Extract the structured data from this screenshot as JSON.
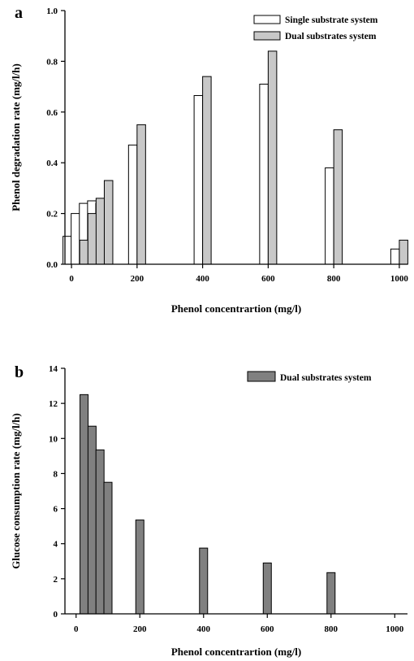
{
  "chart_data": [
    {
      "type": "bar",
      "panel_label": "a",
      "xlabel": "Phenol concentrartion (mg/l)",
      "ylabel": "Phenol degradation rate (mg/l/h)",
      "xlim": [
        -20,
        1025
      ],
      "ylim": [
        0,
        1.0
      ],
      "xticks": [
        0,
        200,
        400,
        600,
        800,
        1000
      ],
      "yticks": [
        0.0,
        0.2,
        0.4,
        0.6,
        0.8,
        1.0
      ],
      "ytick_labels": [
        "0.0",
        "0.2",
        "0.4",
        "0.6",
        "0.8",
        "1.0"
      ],
      "legend_position": "top-right",
      "grid": false,
      "series": [
        {
          "name": "Single substrate system",
          "color": "#ffffff",
          "x": [
            0,
            25,
            50,
            75,
            100,
            200,
            400,
            600,
            800,
            1000
          ],
          "values": [
            0.11,
            0.2,
            0.24,
            0.25,
            0.24,
            0.47,
            0.665,
            0.71,
            0.38,
            0.06
          ]
        },
        {
          "name": "Dual substrates system",
          "color": "#c8c8c8",
          "x": [
            0,
            25,
            50,
            75,
            100,
            200,
            400,
            600,
            800,
            1000
          ],
          "values": [
            null,
            0.095,
            0.2,
            0.26,
            0.33,
            0.55,
            0.74,
            0.84,
            0.53,
            0.095
          ]
        }
      ]
    },
    {
      "type": "bar",
      "panel_label": "b",
      "xlabel": "Phenol concentrartion (mg/l)",
      "ylabel": "Glucose consumption rate (mg/l/h)",
      "xlim": [
        -35,
        1040
      ],
      "ylim": [
        0,
        14
      ],
      "xticks": [
        0,
        200,
        400,
        600,
        800,
        1000
      ],
      "yticks": [
        0,
        2,
        4,
        6,
        8,
        10,
        12,
        14
      ],
      "ytick_labels": [
        "0",
        "2",
        "4",
        "6",
        "8",
        "10",
        "12",
        "14"
      ],
      "legend_position": "top-right",
      "grid": false,
      "series": [
        {
          "name": "Dual substrates system",
          "color": "#808080",
          "x": [
            25,
            50,
            75,
            100,
            200,
            400,
            600,
            800
          ],
          "values": [
            12.5,
            10.7,
            9.35,
            7.5,
            5.35,
            3.75,
            2.9,
            2.35
          ]
        }
      ]
    }
  ]
}
